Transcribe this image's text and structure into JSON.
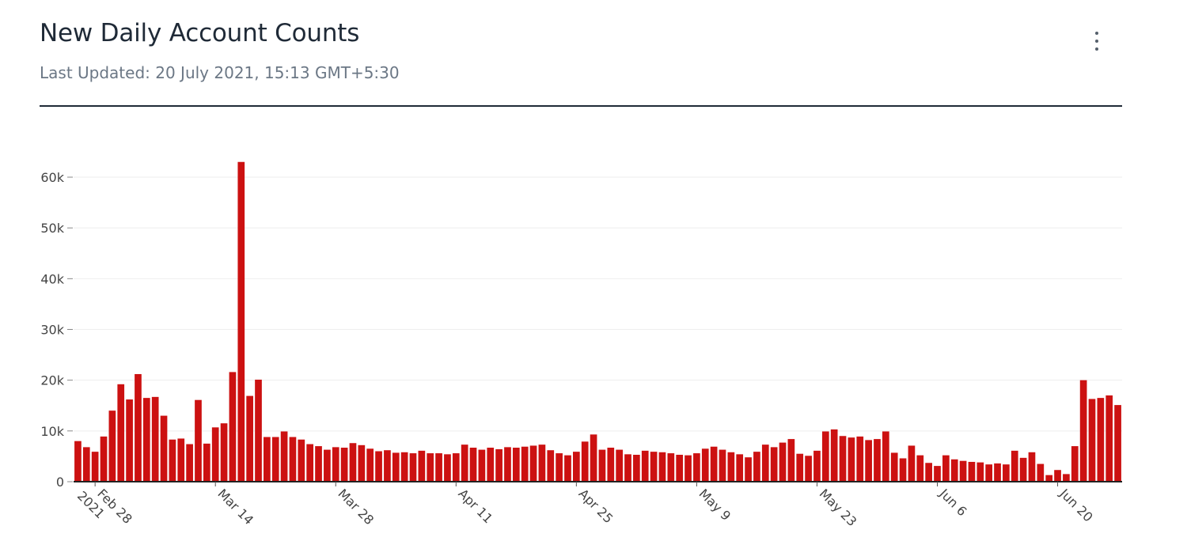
{
  "header": {
    "title": "New Daily Account Counts",
    "subtitle": "Last Updated: 20 July 2021, 15:13 GMT+5:30",
    "menu_icon": "vertical-dots-icon"
  },
  "colors": {
    "bar": "#cc1111",
    "grid": "#eeeeee",
    "axis": "#222222",
    "title": "#1f2a37"
  },
  "chart_data": {
    "type": "bar",
    "start_date": "2021-02-26",
    "ylim": [
      0,
      65000
    ],
    "y_ticks": [
      {
        "value": 0,
        "label": "0"
      },
      {
        "value": 10000,
        "label": "10k"
      },
      {
        "value": 20000,
        "label": "20k"
      },
      {
        "value": 30000,
        "label": "30k"
      },
      {
        "value": 40000,
        "label": "40k"
      },
      {
        "value": 50000,
        "label": "50k"
      },
      {
        "value": 60000,
        "label": "60k"
      }
    ],
    "x_ticks": [
      {
        "date": "2021-02-28",
        "label": "Feb 28",
        "sublabel": "2021"
      },
      {
        "date": "2021-03-14",
        "label": "Mar 14"
      },
      {
        "date": "2021-03-28",
        "label": "Mar 28"
      },
      {
        "date": "2021-04-11",
        "label": "Apr 11"
      },
      {
        "date": "2021-04-25",
        "label": "Apr 25"
      },
      {
        "date": "2021-05-09",
        "label": "May 9"
      },
      {
        "date": "2021-05-23",
        "label": "May 23"
      },
      {
        "date": "2021-06-06",
        "label": "Jun 6"
      },
      {
        "date": "2021-06-20",
        "label": "Jun 20"
      }
    ],
    "grid": true,
    "legend": "none",
    "values": [
      8000,
      6800,
      5900,
      8900,
      14000,
      19200,
      16200,
      21200,
      16500,
      16700,
      13000,
      8300,
      8500,
      7400,
      16100,
      7500,
      10700,
      11500,
      21600,
      63000,
      16900,
      20100,
      8800,
      8800,
      9900,
      8800,
      8300,
      7400,
      7000,
      6300,
      6800,
      6700,
      7600,
      7200,
      6500,
      6000,
      6200,
      5700,
      5800,
      5600,
      6100,
      5600,
      5600,
      5400,
      5600,
      7300,
      6700,
      6300,
      6700,
      6400,
      6800,
      6700,
      6900,
      7100,
      7300,
      6200,
      5600,
      5200,
      5900,
      7900,
      9300,
      6300,
      6700,
      6300,
      5400,
      5300,
      6100,
      5900,
      5800,
      5600,
      5300,
      5200,
      5600,
      6500,
      6900,
      6300,
      5800,
      5400,
      4800,
      5900,
      7300,
      6800,
      7700,
      8400,
      5500,
      5100,
      6100,
      9900,
      10300,
      9000,
      8700,
      8900,
      8200,
      8400,
      9900,
      5700,
      4600,
      7100,
      5200,
      3700,
      3100,
      5200,
      4400,
      4100,
      3900,
      3800,
      3400,
      3600,
      3400,
      6100,
      4700,
      5800,
      3500,
      1300,
      2300,
      1500,
      7000,
      20000,
      16300,
      16500,
      17000,
      15100
    ]
  }
}
